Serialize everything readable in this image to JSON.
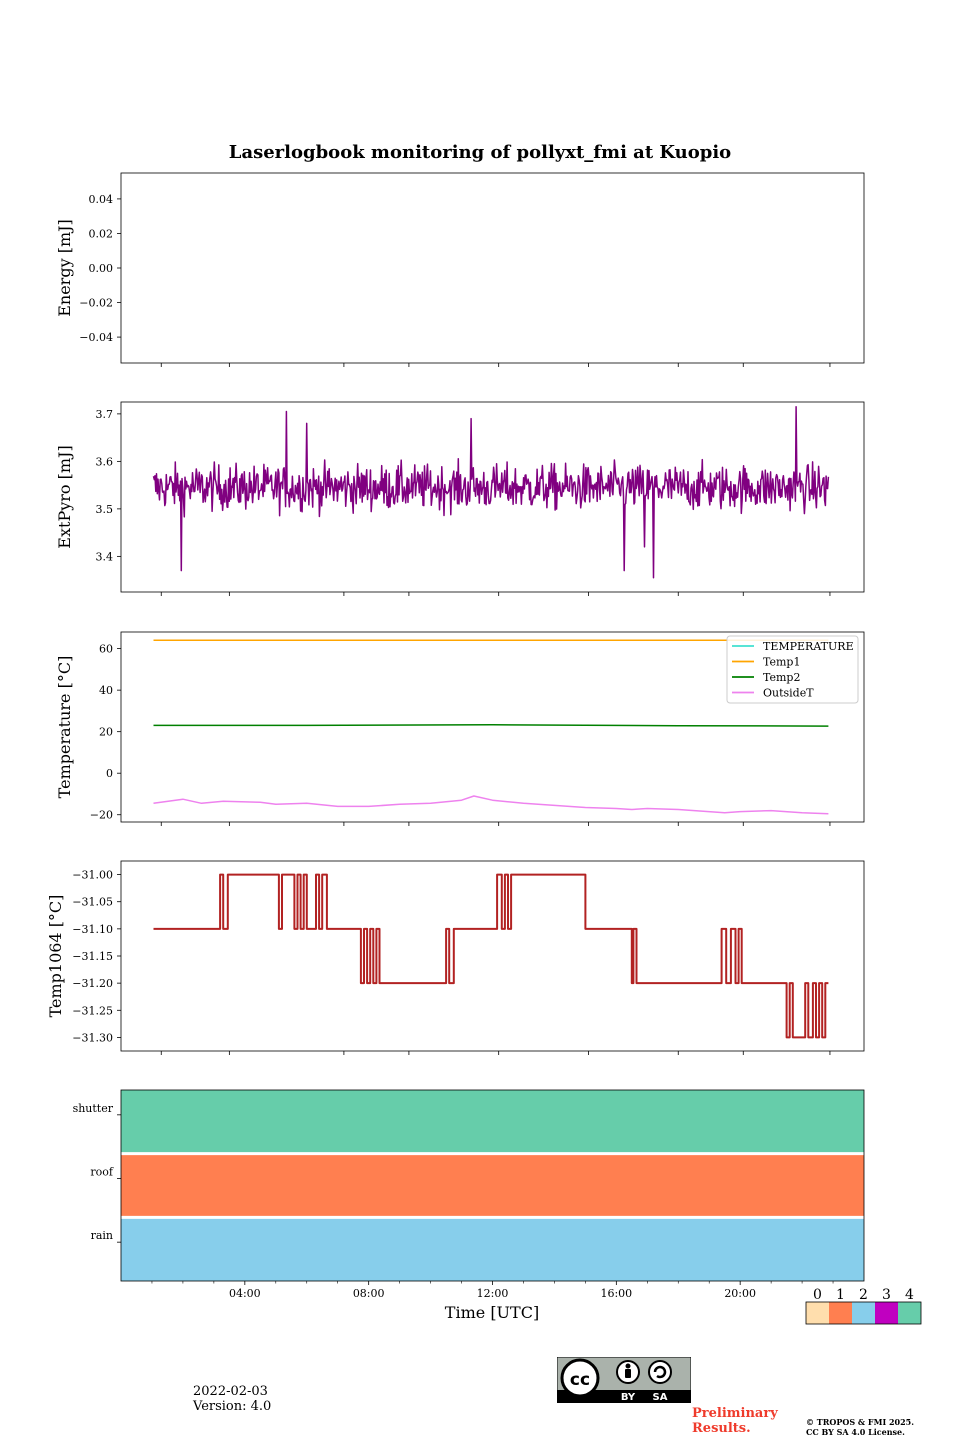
{
  "chart_data": {
    "title": "Laserlogbook monitoring of pollyxt_fmi at Kuopio",
    "xlabel": "Time [UTC]",
    "xlim_hours": [
      0,
      24
    ],
    "xticks": [
      "04:00",
      "08:00",
      "12:00",
      "16:00",
      "20:00"
    ],
    "panels": [
      {
        "type": "line",
        "name": "energy",
        "ylabel": "Energy [mJ]",
        "ylim": [
          -0.055,
          0.055
        ],
        "yticks": [
          0.04,
          0.02,
          0.0,
          -0.02,
          -0.04
        ],
        "ytick_labels": [
          "0.04",
          "0.02",
          "0.00",
          "−0.02",
          "−0.04"
        ],
        "series": []
      },
      {
        "type": "line",
        "name": "extpyro",
        "ylabel": "ExtPyro [mJ]",
        "ylim": [
          3.325,
          3.725
        ],
        "yticks": [
          3.7,
          3.6,
          3.5,
          3.4
        ],
        "ytick_labels": [
          "3.7",
          "3.6",
          "3.5",
          "3.4"
        ],
        "series": [
          {
            "name": "ExtPyro",
            "color": "#800080",
            "x_range": [
              1.05,
              22.85
            ],
            "mean": 3.545,
            "noise": 0.045,
            "spikes": [
              [
                5.35,
                3.705
              ],
              [
                6.0,
                3.68
              ],
              [
                11.3,
                3.69
              ],
              [
                21.8,
                3.715
              ],
              [
                1.95,
                3.37
              ],
              [
                17.2,
                3.34
              ],
              [
                16.25,
                3.37
              ],
              [
                16.9,
                3.42
              ]
            ]
          }
        ]
      },
      {
        "type": "line",
        "name": "temperature",
        "ylabel": "Temperature [°C]",
        "ylim": [
          -23.5,
          68
        ],
        "yticks": [
          60,
          40,
          20,
          0,
          -20
        ],
        "ytick_labels": [
          "60",
          "40",
          "20",
          "0",
          "−20"
        ],
        "legend": [
          "TEMPERATURE",
          "Temp1",
          "Temp2",
          "OutsideT"
        ],
        "series": [
          {
            "name": "TEMPERATURE",
            "color": "#40e0d0",
            "x": [],
            "y": []
          },
          {
            "name": "Temp1",
            "color": "#ffa500",
            "x": [
              1.05,
              22.85
            ],
            "y": [
              64,
              64
            ]
          },
          {
            "name": "Temp2",
            "color": "#008000",
            "x": [
              1.05,
              6,
              12,
              18,
              22.85
            ],
            "y": [
              23,
              23,
              23.3,
              22.9,
              22.7
            ]
          },
          {
            "name": "OutsideT",
            "color": "#ee82ee",
            "x": [
              1.05,
              2.0,
              2.6,
              3.3,
              4.5,
              5.0,
              6.0,
              7.0,
              8.0,
              9.0,
              10.0,
              11.0,
              11.4,
              12.0,
              13.0,
              15.0,
              16.0,
              16.5,
              17.0,
              18.0,
              19.5,
              20.0,
              21.0,
              22.0,
              22.85
            ],
            "y": [
              -14.5,
              -12.5,
              -14.5,
              -13.5,
              -14,
              -15,
              -14.5,
              -16,
              -16,
              -15,
              -14.5,
              -13,
              -11,
              -13,
              -14.5,
              -16.5,
              -17,
              -17.5,
              -17,
              -17.5,
              -19,
              -18.5,
              -18,
              -19,
              -19.5
            ]
          }
        ]
      },
      {
        "type": "step",
        "name": "temp1064",
        "ylabel": "Temp1064 [°C]",
        "ylim": [
          -31.325,
          -30.975
        ],
        "yticks": [
          -31.0,
          -31.05,
          -31.1,
          -31.15,
          -31.2,
          -31.25,
          -31.3
        ],
        "ytick_labels": [
          "−31.00",
          "−31.05",
          "−31.10",
          "−31.15",
          "−31.20",
          "−31.25",
          "−31.30"
        ],
        "series": [
          {
            "name": "Temp1064",
            "color": "#b22222",
            "steps": [
              [
                1.05,
                -31.1
              ],
              [
                3.2,
                -31.0
              ],
              [
                3.3,
                -31.1
              ],
              [
                3.45,
                -31.0
              ],
              [
                5.1,
                -31.1
              ],
              [
                5.2,
                -31.0
              ],
              [
                5.6,
                -31.1
              ],
              [
                5.7,
                -31.0
              ],
              [
                5.8,
                -31.1
              ],
              [
                5.9,
                -31.0
              ],
              [
                6.0,
                -31.1
              ],
              [
                6.3,
                -31.0
              ],
              [
                6.4,
                -31.1
              ],
              [
                6.5,
                -31.0
              ],
              [
                6.65,
                -31.1
              ],
              [
                7.75,
                -31.2
              ],
              [
                7.85,
                -31.1
              ],
              [
                7.95,
                -31.2
              ],
              [
                8.05,
                -31.1
              ],
              [
                8.15,
                -31.2
              ],
              [
                8.25,
                -31.1
              ],
              [
                8.35,
                -31.2
              ],
              [
                10.5,
                -31.1
              ],
              [
                10.6,
                -31.2
              ],
              [
                10.75,
                -31.1
              ],
              [
                12.15,
                -31.0
              ],
              [
                12.3,
                -31.1
              ],
              [
                12.4,
                -31.0
              ],
              [
                12.5,
                -31.1
              ],
              [
                12.6,
                -31.0
              ],
              [
                15.0,
                -31.1
              ],
              [
                16.5,
                -31.2
              ],
              [
                16.55,
                -31.1
              ],
              [
                16.65,
                -31.2
              ],
              [
                19.4,
                -31.1
              ],
              [
                19.55,
                -31.2
              ],
              [
                19.7,
                -31.1
              ],
              [
                19.85,
                -31.2
              ],
              [
                19.95,
                -31.1
              ],
              [
                20.05,
                -31.2
              ],
              [
                21.5,
                -31.3
              ],
              [
                21.6,
                -31.2
              ],
              [
                21.7,
                -31.3
              ],
              [
                22.1,
                -31.2
              ],
              [
                22.2,
                -31.3
              ],
              [
                22.35,
                -31.2
              ],
              [
                22.45,
                -31.3
              ],
              [
                22.55,
                -31.2
              ],
              [
                22.65,
                -31.3
              ],
              [
                22.75,
                -31.2
              ],
              [
                22.85,
                -31.2
              ]
            ]
          }
        ]
      },
      {
        "type": "status",
        "name": "status",
        "rows": [
          {
            "label": "shutter",
            "color": "#66cdaa"
          },
          {
            "label": "roof",
            "color": "#ff7f50"
          },
          {
            "label": "rain",
            "color": "#87ceeb"
          }
        ]
      }
    ],
    "colorbar": {
      "ticks": [
        "0",
        "1",
        "2",
        "3",
        "4"
      ],
      "colors": [
        "#ffdead",
        "#ff7f50",
        "#87ceeb",
        "#c000c0",
        "#66cdaa"
      ]
    }
  },
  "footer": {
    "date": "2022-02-03",
    "version": "Version: 4.0",
    "preliminary_1": "Preliminary",
    "preliminary_2": "Results.",
    "copyright_1": "© TROPOS & FMI 2025.",
    "copyright_2": "CC BY SA 4.0 License.",
    "license_by": "BY",
    "license_sa": "SA"
  }
}
